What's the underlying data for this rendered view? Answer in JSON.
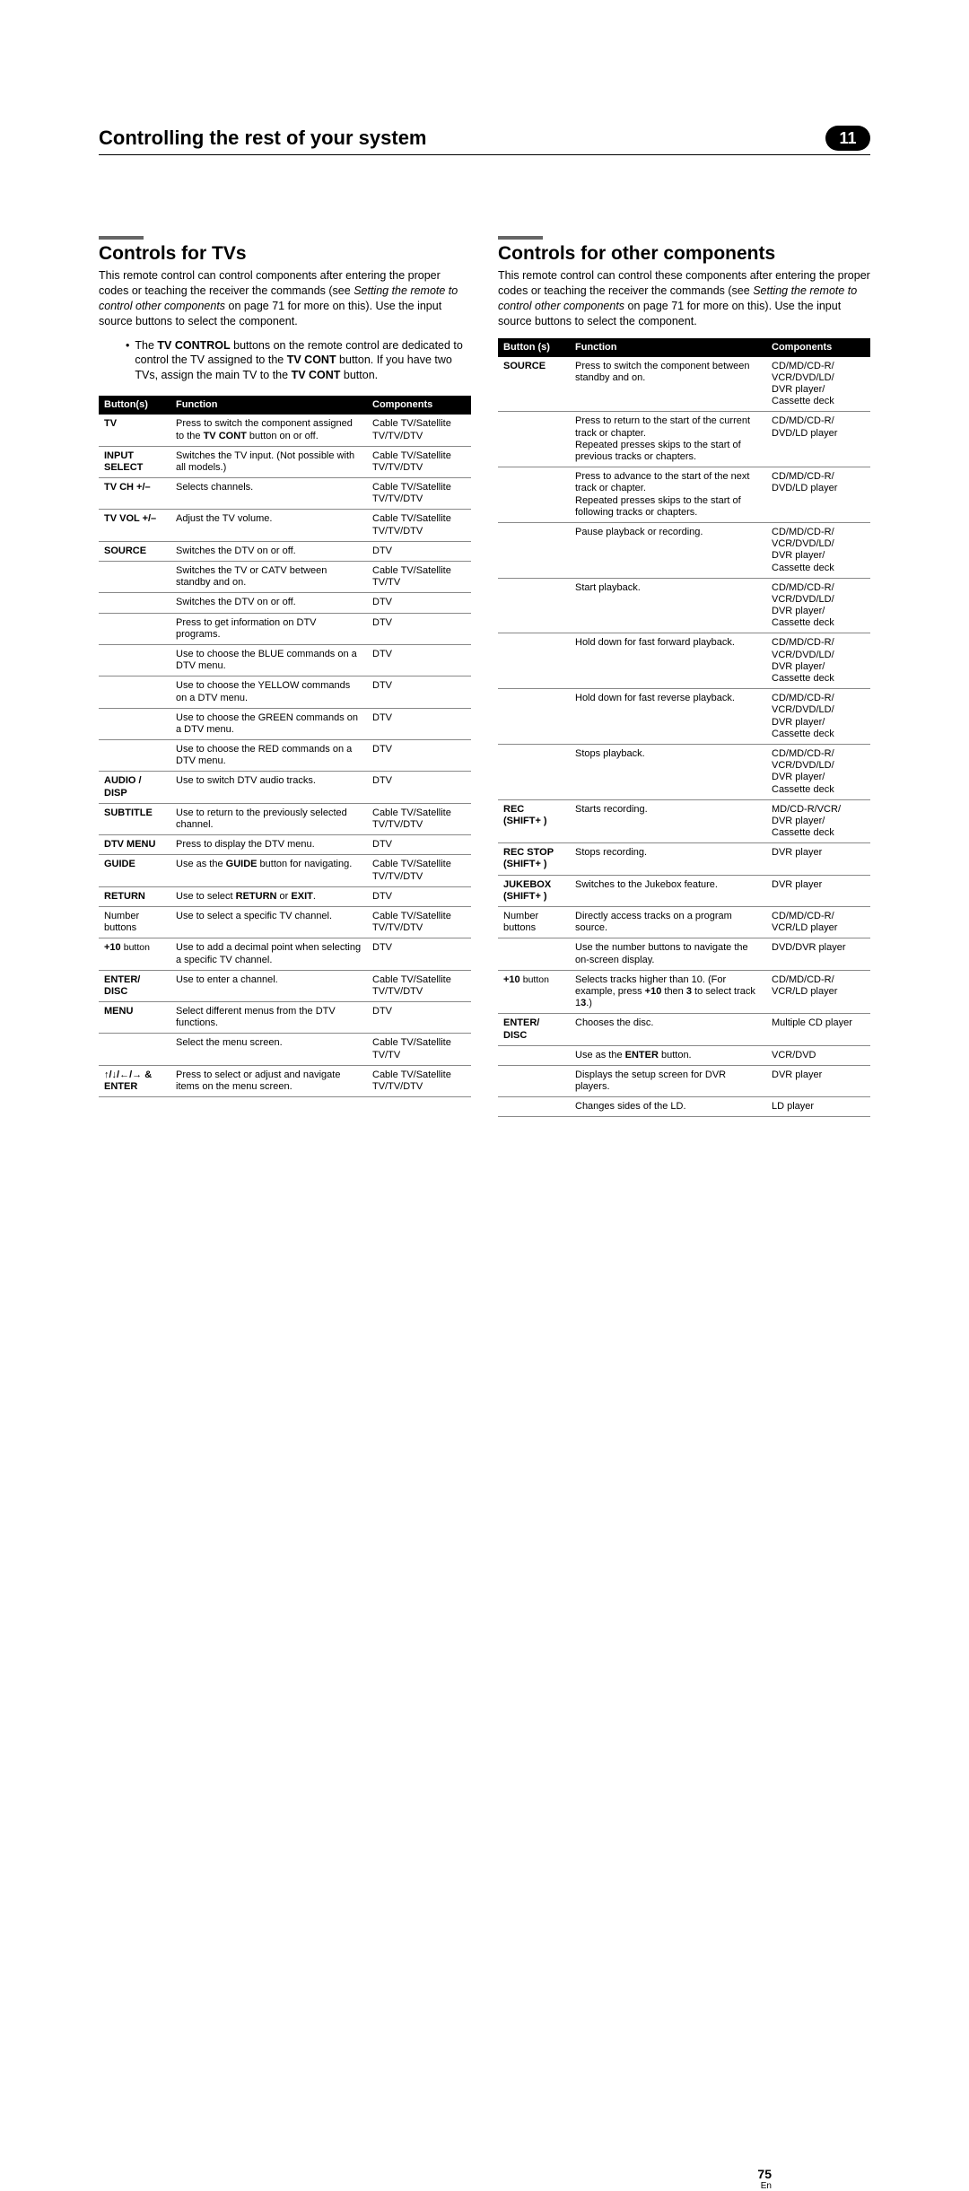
{
  "header": {
    "chapter_title": "Controlling the rest of your system",
    "chapter_number": "11"
  },
  "left": {
    "section_title": "Controls for TVs",
    "intro_prefix": "This remote control can control components after entering the proper codes or teaching the receiver the commands (see ",
    "intro_italic": "Setting the remote to control other components",
    "intro_suffix": " on page 71 for more on this). Use the input source buttons to select the component.",
    "bullet_text": "The TV CONTROL buttons on the remote control are dedicated to control the TV assigned to the TV CONT button. If you have two TVs, assign the main TV to the TV CONT button.",
    "table": {
      "headers": [
        "Button(s)",
        "Function",
        "Components"
      ],
      "rows": [
        {
          "b": "TV",
          "bw": true,
          "f": "Press to switch the component assigned to the TV CONT button on or off.",
          "c": "Cable TV/Satellite TV/TV/DTV"
        },
        {
          "b": "INPUT SELECT",
          "bw": true,
          "f": "Switches the TV input. (Not possible with all models.)",
          "c": "Cable TV/Satellite TV/TV/DTV"
        },
        {
          "b": "TV CH +/–",
          "bw": true,
          "f": "Selects channels.",
          "c": "Cable TV/Satellite TV/TV/DTV"
        },
        {
          "b": "TV VOL +/–",
          "bw": true,
          "f": "Adjust the TV volume.",
          "c": "Cable TV/Satellite TV/TV/DTV"
        },
        {
          "b": "SOURCE",
          "bw": true,
          "f": "Switches the DTV on or off.",
          "c": "DTV"
        },
        {
          "b": "",
          "bw": false,
          "f": "Switches the TV or CATV between standby and on.",
          "c": "Cable TV/Satellite TV/TV"
        },
        {
          "b": "",
          "bw": false,
          "f": "Switches the DTV on or off.",
          "c": "DTV"
        },
        {
          "b": "",
          "bw": false,
          "f": "Press to get information on DTV programs.",
          "c": "DTV"
        },
        {
          "b": "",
          "bw": false,
          "f": "Use to choose the BLUE commands on a DTV menu.",
          "c": "DTV"
        },
        {
          "b": "",
          "bw": false,
          "f": "Use to choose the YELLOW commands on a DTV menu.",
          "c": "DTV"
        },
        {
          "b": "",
          "bw": false,
          "f": "Use to choose the GREEN commands on a DTV menu.",
          "c": "DTV"
        },
        {
          "b": "",
          "bw": false,
          "f": "Use to choose the RED commands on a DTV menu.",
          "c": "DTV"
        },
        {
          "b": "AUDIO / DISP",
          "bw": true,
          "f": "Use to switch DTV audio tracks.",
          "c": "DTV"
        },
        {
          "b": "SUBTITLE",
          "bw": true,
          "f": "Use to return to the previously selected channel.",
          "c": "Cable TV/Satellite TV/TV/DTV"
        },
        {
          "b": "DTV MENU",
          "bw": true,
          "f": "Press to display the DTV menu.",
          "c": "DTV"
        },
        {
          "b": "GUIDE",
          "bw": true,
          "f": "Use as the GUIDE button for navigating.",
          "c": "Cable TV/Satellite TV/TV/DTV"
        },
        {
          "b": "RETURN",
          "bw": true,
          "f": "Use to select RETURN or EXIT.",
          "c": "DTV"
        },
        {
          "b": "Number buttons",
          "bw": false,
          "f": "Use to select a specific TV channel.",
          "c": "Cable TV/Satellite TV/TV/DTV"
        },
        {
          "b": "+10 button",
          "bw": false,
          "bwprefix": "+10",
          "f": "Use to add a decimal point when selecting a specific TV channel.",
          "c": "DTV"
        },
        {
          "b": "ENTER/\nDISC",
          "bw": true,
          "f": "Use to enter a channel.",
          "c": "Cable TV/Satellite TV/TV/DTV"
        },
        {
          "b": "MENU",
          "bw": true,
          "f": "Select different menus from the DTV functions.",
          "c": "DTV"
        },
        {
          "b": "",
          "bw": false,
          "f": "Select the menu screen.",
          "c": "Cable TV/Satellite TV/TV"
        },
        {
          "b": "↑/↓/←/→ & ENTER",
          "bw": true,
          "f": "Press to select or adjust and navigate items on the menu screen.",
          "c": "Cable TV/Satellite TV/TV/DTV"
        }
      ]
    }
  },
  "right": {
    "section_title": "Controls for other components",
    "intro_prefix": "This remote control can control these components after entering the proper codes or teaching the receiver the commands (see ",
    "intro_italic": "Setting the remote to control other components",
    "intro_suffix": " on page 71 for more on this). Use the input source buttons to select the component.",
    "table": {
      "headers": [
        "Button (s)",
        "Function",
        "Components"
      ],
      "rows": [
        {
          "b": "SOURCE",
          "bw": true,
          "f": "Press to switch the component between standby and on.",
          "c": "CD/MD/CD-R/\nVCR/DVD/LD/\nDVR player/\nCassette deck"
        },
        {
          "b": "",
          "bw": false,
          "f": "Press to return to the start of the current track or chapter.\nRepeated presses skips to the start of previous tracks or chapters.",
          "c": "CD/MD/CD-R/\nDVD/LD player"
        },
        {
          "b": "",
          "bw": false,
          "f": "Press to advance to the start of the next track or chapter.\nRepeated presses skips to the start of following tracks or chapters.",
          "c": "CD/MD/CD-R/\nDVD/LD player"
        },
        {
          "b": "",
          "bw": false,
          "f": "Pause playback or recording.",
          "c": "CD/MD/CD-R/\nVCR/DVD/LD/\nDVR player/\nCassette deck"
        },
        {
          "b": "",
          "bw": false,
          "f": "Start playback.",
          "c": "CD/MD/CD-R/\nVCR/DVD/LD/\nDVR player/\nCassette deck"
        },
        {
          "b": "",
          "bw": false,
          "f": "Hold down for fast forward playback.",
          "c": "CD/MD/CD-R/\nVCR/DVD/LD/\nDVR player/\nCassette deck"
        },
        {
          "b": "",
          "bw": false,
          "f": "Hold down for fast reverse playback.",
          "c": "CD/MD/CD-R/\nVCR/DVD/LD/\nDVR player/\nCassette deck"
        },
        {
          "b": "",
          "bw": false,
          "f": "Stops playback.",
          "c": "CD/MD/CD-R/\nVCR/DVD/LD/\nDVR player/\nCassette deck"
        },
        {
          "b": "REC\n(SHIFT+   )",
          "bw": true,
          "f": "Starts recording.",
          "c": "MD/CD-R/VCR/\nDVR player/\nCassette deck"
        },
        {
          "b": "REC STOP\n(SHIFT+   )",
          "bw": true,
          "f": "Stops recording.",
          "c": "DVR player"
        },
        {
          "b": "JUKEBOX\n(SHIFT+    )",
          "bw": true,
          "f": "Switches to the Jukebox feature.",
          "c": "DVR player"
        },
        {
          "b": "Number buttons",
          "bw": false,
          "f": "Directly access tracks on a program source.",
          "c": "CD/MD/CD-R/\nVCR/LD player"
        },
        {
          "b": "",
          "bw": false,
          "f": "Use the number buttons to navigate the on-screen display.",
          "c": "DVD/DVR player"
        },
        {
          "b": "+10 button",
          "bw": false,
          "bwprefix": "+10",
          "f": "Selects tracks higher than 10. (For example, press +10 then 3 to select track 13.)",
          "c": "CD/MD/CD-R/\nVCR/LD player"
        },
        {
          "b": "ENTER/\nDISC",
          "bw": true,
          "f": "Chooses the disc.",
          "c": "Multiple CD player"
        },
        {
          "b": "",
          "bw": false,
          "f": "Use as the ENTER button.",
          "c": "VCR/DVD"
        },
        {
          "b": "",
          "bw": false,
          "f": "Displays the setup screen for DVR players.",
          "c": "DVR player"
        },
        {
          "b": "",
          "bw": false,
          "f": "Changes sides of the LD.",
          "c": "LD player"
        }
      ]
    }
  },
  "footer": {
    "page_number": "75",
    "language": "En"
  }
}
